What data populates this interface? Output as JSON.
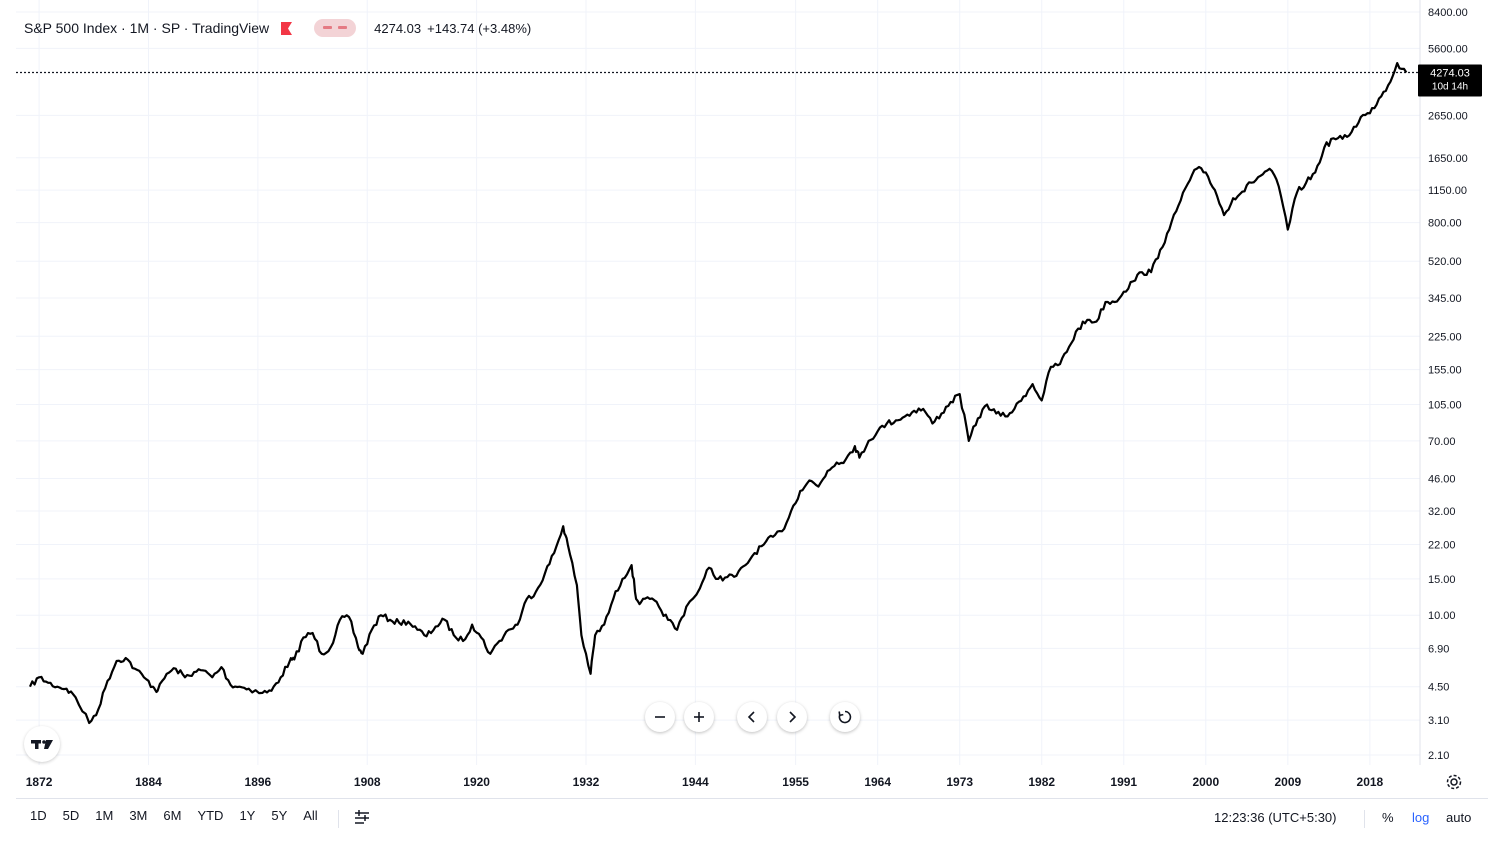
{
  "header": {
    "title": "S&P 500 Index · 1M · SP · TradingView",
    "price": "4274.03",
    "change": "+143.74 (+3.48%)"
  },
  "price_tag": {
    "value": "4274.03",
    "countdown": "10d 14h"
  },
  "toolbar": {
    "ranges": [
      "1D",
      "5D",
      "1M",
      "3M",
      "6M",
      "YTD",
      "1Y",
      "5Y",
      "All"
    ],
    "clock": "12:23:36 (UTC+5:30)",
    "percent_label": "%",
    "log_label": "log",
    "auto_label": "auto"
  },
  "icons": {
    "zoom_out": "minus-icon",
    "zoom_in": "plus-icon",
    "scroll_left": "chevron-left-icon",
    "scroll_right": "chevron-right-icon",
    "reset": "reset-icon",
    "calendar": "calendar-icon",
    "settings": "gear-icon",
    "logo": "tradingview-logo"
  },
  "colors": {
    "line": "#000000",
    "grid": "#f0f3fa",
    "accent": "#2962ff",
    "flag": "#f23645"
  },
  "chart_data": {
    "type": "line",
    "scale": "log",
    "grid": true,
    "x_tick_labels": [
      "1872",
      "1884",
      "1896",
      "1908",
      "1920",
      "1932",
      "1944",
      "1955",
      "1964",
      "1973",
      "1982",
      "1991",
      "2000",
      "2009",
      "2018"
    ],
    "y_tick_labels": [
      "8400.00",
      "5600.00",
      "2650.00",
      "1650.00",
      "1150.00",
      "800.00",
      "520.00",
      "345.00",
      "225.00",
      "155.00",
      "105.00",
      "70.00",
      "46.00",
      "32.00",
      "22.00",
      "15.00",
      "10.00",
      "6.90",
      "4.50",
      "3.10",
      "2.10"
    ],
    "last_value": 4274.03,
    "series": [
      {
        "x": [
          1871.0,
          1872.0,
          1873.0,
          1874.0,
          1875.0,
          1876.0,
          1877.5,
          1878.5,
          1879.5,
          1880.5,
          1881.5,
          1882.5,
          1883.5,
          1884.5,
          1885.0,
          1886.0,
          1887.0,
          1888.0,
          1889.0,
          1890.0,
          1891.0,
          1892.0,
          1893.0,
          1894.0,
          1895.0,
          1896.5,
          1897.5,
          1898.5,
          1899.5,
          1900.0,
          1901.0,
          1902.0,
          1903.0,
          1904.0,
          1905.0,
          1906.0,
          1907.0,
          1907.5,
          1908.5,
          1909.5,
          1910.5,
          1911.5,
          1912.5,
          1913.5,
          1914.5,
          1915.5,
          1916.5,
          1917.5,
          1918.5,
          1919.5,
          1920.5,
          1921.5,
          1922.5,
          1923.5,
          1924.5,
          1925.5,
          1926.5,
          1927.5,
          1928.5,
          1929.5,
          1930.0,
          1931.0,
          1931.5,
          1932.5,
          1933.0,
          1934.0,
          1935.0,
          1936.0,
          1937.0,
          1937.5,
          1938.0,
          1939.0,
          1940.0,
          1941.0,
          1942.0,
          1943.0,
          1944.5,
          1945.5,
          1946.5,
          1947.5,
          1948.5,
          1949.5,
          1950.5,
          1951.5,
          1952.5,
          1953.5,
          1954.5,
          1955.5,
          1956.5,
          1957.5,
          1958.5,
          1959.5,
          1960.5,
          1961.5,
          1962.0,
          1963.0,
          1964.0,
          1965.0,
          1966.0,
          1967.0,
          1968.0,
          1969.0,
          1970.0,
          1971.0,
          1972.0,
          1973.0,
          1974.0,
          1975.0,
          1976.0,
          1977.0,
          1978.0,
          1979.0,
          1980.0,
          1981.0,
          1982.0,
          1983.0,
          1984.0,
          1985.0,
          1986.0,
          1987.0,
          1988.0,
          1989.0,
          1990.0,
          1991.0,
          1992.0,
          1993.0,
          1994.0,
          1995.0,
          1996.0,
          1997.0,
          1998.0,
          1999.0,
          2000.0,
          2001.0,
          2002.0,
          2003.0,
          2004.0,
          2005.0,
          2006.0,
          2007.0,
          2008.0,
          2009.0,
          2010.0,
          2011.0,
          2012.0,
          2013.0,
          2014.0,
          2015.0,
          2016.0,
          2017.0,
          2018.0,
          2019.0,
          2020.0,
          2021.0,
          2022.0
        ],
        "values": [
          4.5,
          5.0,
          4.7,
          4.5,
          4.4,
          4.0,
          3.0,
          3.5,
          4.8,
          6.0,
          6.2,
          5.5,
          5.0,
          4.5,
          4.3,
          5.2,
          5.5,
          5.0,
          5.3,
          5.4,
          5.0,
          5.6,
          4.6,
          4.5,
          4.4,
          4.2,
          4.3,
          5.0,
          6.0,
          6.1,
          7.8,
          8.2,
          6.5,
          7.0,
          9.5,
          9.8,
          7.0,
          6.5,
          8.5,
          10.0,
          9.5,
          9.2,
          9.3,
          8.5,
          7.9,
          8.8,
          9.5,
          8.0,
          7.5,
          9.0,
          7.8,
          6.5,
          7.5,
          8.5,
          9.0,
          12.0,
          13.0,
          16.0,
          20.0,
          27.0,
          22.0,
          14.0,
          8.0,
          5.2,
          8.0,
          9.0,
          12.0,
          15.0,
          17.5,
          12.0,
          11.5,
          12.0,
          11.0,
          9.5,
          8.5,
          11.0,
          13.5,
          17.0,
          15.0,
          15.3,
          15.5,
          17.5,
          20.0,
          22.0,
          24.0,
          25.5,
          32.0,
          40.0,
          45.0,
          42.0,
          50.0,
          55.0,
          57.0,
          66.0,
          58.0,
          70.0,
          78.0,
          85.0,
          88.0,
          92.0,
          98.0,
          100.0,
          85.0,
          95.0,
          108.0,
          118.0,
          70.0,
          90.0,
          105.0,
          95.0,
          92.0,
          100.0,
          115.0,
          132.0,
          110.0,
          160.0,
          165.0,
          200.0,
          245.0,
          270.0,
          265.0,
          330.0,
          330.0,
          370.0,
          415.0,
          460.0,
          460.0,
          590.0,
          740.0,
          970.0,
          1230.0,
          1460.0,
          1400.0,
          1150.0,
          870.0,
          1050.0,
          1130.0,
          1250.0,
          1350.0,
          1460.0,
          1200.0,
          740.0,
          1120.0,
          1250.0,
          1400.0,
          1850.0,
          2050.0,
          2040.0,
          2200.0,
          2600.0,
          2710.0,
          3200.0,
          3700.0,
          4750.0,
          4274.03
        ]
      }
    ]
  }
}
